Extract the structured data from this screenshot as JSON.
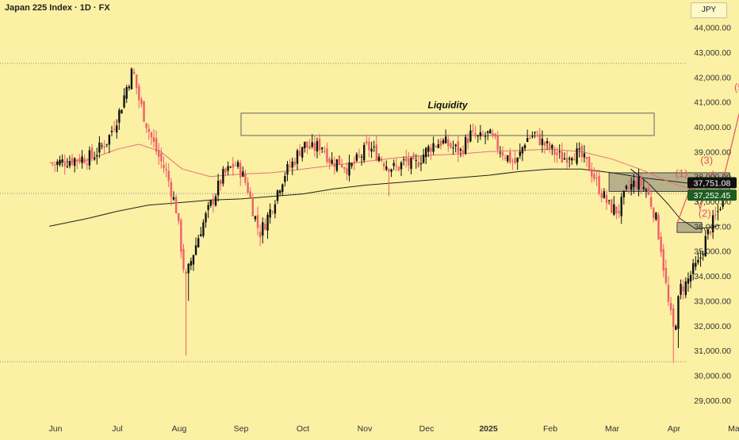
{
  "header": {
    "title": "Japan 225 Index · 1D · FX",
    "currency": "JPY"
  },
  "colors": {
    "background": "#fbf0a3",
    "up": "#111111",
    "down": "#ef5f6a",
    "ma_fast": "#e8707a",
    "ma_slow": "#222222",
    "wave": "#e05565",
    "zone": "#7d7e72"
  },
  "annotations": {
    "liquidity_label": "Liquidity",
    "waves": [
      "(1)",
      "(2)",
      "(3)",
      "(4)",
      "(5"
    ]
  },
  "price_tags": [
    {
      "label": "37,751.08",
      "value": 37751.08,
      "style": "dark"
    },
    {
      "label": "37,252.45",
      "value": 37252.45,
      "style": "green"
    }
  ],
  "chart_data": {
    "type": "candlestick",
    "symbol": "Japan 225 Index",
    "interval": "1D",
    "source": "FX",
    "currency": "JPY",
    "ylim": [
      28500,
      45500
    ],
    "y_ticks": [
      {
        "value": 29000,
        "label": "29,000.00"
      },
      {
        "value": 30000,
        "label": "30,000.00"
      },
      {
        "value": 31000,
        "label": "31,000.00"
      },
      {
        "value": 32000,
        "label": "32,000.00"
      },
      {
        "value": 33000,
        "label": "33,000.00"
      },
      {
        "value": 34000,
        "label": "34,000.00"
      },
      {
        "value": 35000,
        "label": "35,000.00"
      },
      {
        "value": 36000,
        "label": "36,000.00"
      },
      {
        "value": 37000,
        "label": "37,000.00"
      },
      {
        "value": 38000,
        "label": "38,000.00"
      },
      {
        "value": 39000,
        "label": "39,000.00"
      },
      {
        "value": 40000,
        "label": "40,000.00"
      },
      {
        "value": 41000,
        "label": "41,000.00"
      },
      {
        "value": 42000,
        "label": "42,000.00"
      },
      {
        "value": 43000,
        "label": "43,000.00"
      },
      {
        "value": 44000,
        "label": "44,000.00"
      }
    ],
    "x_ticks": [
      {
        "index": 0,
        "label": "Jun",
        "bold": false
      },
      {
        "index": 1,
        "label": "Jul",
        "bold": false
      },
      {
        "index": 2,
        "label": "Aug",
        "bold": false
      },
      {
        "index": 3,
        "label": "Sep",
        "bold": false
      },
      {
        "index": 4,
        "label": "Oct",
        "bold": false
      },
      {
        "index": 5,
        "label": "Nov",
        "bold": false
      },
      {
        "index": 6,
        "label": "Dec",
        "bold": false
      },
      {
        "index": 7,
        "label": "2025",
        "bold": true
      },
      {
        "index": 8,
        "label": "Feb",
        "bold": false
      },
      {
        "index": 9,
        "label": "Mar",
        "bold": false
      },
      {
        "index": 10,
        "label": "Apr",
        "bold": false
      },
      {
        "index": 11,
        "label": "May",
        "bold": false
      }
    ],
    "horizontal_levels": [
      42550,
      30550,
      37320
    ],
    "liquidity_zone": {
      "y_top": 40550,
      "y_bottom": 39650,
      "x_start": 3.0,
      "x_end": 9.68
    },
    "supply_zone": {
      "y_top": 38150,
      "y_bottom": 37400,
      "x_start": 8.95,
      "x_end": 10.9
    },
    "demand_zone": {
      "y_top": 36150,
      "y_bottom": 35750,
      "x_start": 10.05,
      "x_end": 10.45
    },
    "wave_path": [
      {
        "x": 10.05,
        "y": 36100,
        "label": ""
      },
      {
        "x": 10.3,
        "y": 37800,
        "label": "(1)"
      },
      {
        "x": 10.42,
        "y": 36700,
        "label": "(2)"
      },
      {
        "x": 10.63,
        "y": 38200,
        "label": "(3)"
      },
      {
        "x": 10.75,
        "y": 37400,
        "label": "(4)"
      },
      {
        "x": 11.1,
        "y": 41000,
        "label": "(5"
      }
    ],
    "ma_fast": [
      {
        "x": -0.1,
        "y": 38550
      },
      {
        "x": 0.5,
        "y": 38650
      },
      {
        "x": 1.0,
        "y": 39100
      },
      {
        "x": 1.35,
        "y": 39300
      },
      {
        "x": 1.7,
        "y": 39000
      },
      {
        "x": 2.05,
        "y": 38300
      },
      {
        "x": 2.5,
        "y": 38000
      },
      {
        "x": 3.0,
        "y": 38100
      },
      {
        "x": 3.5,
        "y": 38150
      },
      {
        "x": 4.0,
        "y": 38300
      },
      {
        "x": 4.5,
        "y": 38450
      },
      {
        "x": 5.0,
        "y": 38600
      },
      {
        "x": 5.5,
        "y": 38750
      },
      {
        "x": 6.0,
        "y": 38850
      },
      {
        "x": 6.5,
        "y": 38900
      },
      {
        "x": 7.0,
        "y": 39000
      },
      {
        "x": 7.5,
        "y": 39050
      },
      {
        "x": 8.0,
        "y": 39100
      },
      {
        "x": 8.5,
        "y": 39000
      },
      {
        "x": 9.0,
        "y": 38700
      },
      {
        "x": 9.5,
        "y": 38250
      },
      {
        "x": 10.0,
        "y": 37700
      },
      {
        "x": 10.5,
        "y": 37350
      },
      {
        "x": 10.9,
        "y": 37200
      }
    ],
    "ma_slow": [
      {
        "x": -0.1,
        "y": 36000
      },
      {
        "x": 0.5,
        "y": 36300
      },
      {
        "x": 1.0,
        "y": 36600
      },
      {
        "x": 1.5,
        "y": 36850
      },
      {
        "x": 2.0,
        "y": 36950
      },
      {
        "x": 2.5,
        "y": 37050
      },
      {
        "x": 3.0,
        "y": 37100
      },
      {
        "x": 3.5,
        "y": 37200
      },
      {
        "x": 4.0,
        "y": 37300
      },
      {
        "x": 4.5,
        "y": 37500
      },
      {
        "x": 5.0,
        "y": 37650
      },
      {
        "x": 5.5,
        "y": 37750
      },
      {
        "x": 6.0,
        "y": 37850
      },
      {
        "x": 6.5,
        "y": 37950
      },
      {
        "x": 7.0,
        "y": 38050
      },
      {
        "x": 7.5,
        "y": 38200
      },
      {
        "x": 8.0,
        "y": 38300
      },
      {
        "x": 8.5,
        "y": 38300
      },
      {
        "x": 9.0,
        "y": 38150
      },
      {
        "x": 9.5,
        "y": 37950
      },
      {
        "x": 10.0,
        "y": 37800
      },
      {
        "x": 10.5,
        "y": 37650
      },
      {
        "x": 10.9,
        "y": 37600
      }
    ],
    "ma_mid": [
      {
        "x": 9.3,
        "y": 38300
      },
      {
        "x": 9.6,
        "y": 37700
      },
      {
        "x": 9.9,
        "y": 36900
      },
      {
        "x": 10.1,
        "y": 36300
      },
      {
        "x": 10.35,
        "y": 35900
      },
      {
        "x": 10.6,
        "y": 35950
      },
      {
        "x": 10.75,
        "y": 36050
      }
    ],
    "closes": [
      {
        "x": -0.05,
        "y": 38500
      },
      {
        "x": 0.3,
        "y": 38700
      },
      {
        "x": 0.6,
        "y": 38800
      },
      {
        "x": 0.85,
        "y": 39500
      },
      {
        "x": 1.05,
        "y": 40700
      },
      {
        "x": 1.15,
        "y": 41600
      },
      {
        "x": 1.25,
        "y": 42300
      },
      {
        "x": 1.35,
        "y": 41100
      },
      {
        "x": 1.5,
        "y": 39900
      },
      {
        "x": 1.65,
        "y": 38900
      },
      {
        "x": 1.8,
        "y": 38100
      },
      {
        "x": 1.95,
        "y": 36700
      },
      {
        "x": 2.1,
        "y": 33800
      },
      {
        "x": 2.2,
        "y": 34700
      },
      {
        "x": 2.35,
        "y": 35900
      },
      {
        "x": 2.5,
        "y": 36800
      },
      {
        "x": 2.7,
        "y": 38000
      },
      {
        "x": 2.9,
        "y": 38500
      },
      {
        "x": 3.0,
        "y": 38200
      },
      {
        "x": 3.1,
        "y": 37600
      },
      {
        "x": 3.2,
        "y": 36600
      },
      {
        "x": 3.3,
        "y": 35700
      },
      {
        "x": 3.4,
        "y": 36200
      },
      {
        "x": 3.5,
        "y": 36800
      },
      {
        "x": 3.6,
        "y": 37500
      },
      {
        "x": 3.7,
        "y": 38100
      },
      {
        "x": 3.85,
        "y": 38600
      },
      {
        "x": 4.0,
        "y": 39300
      },
      {
        "x": 4.15,
        "y": 39100
      },
      {
        "x": 4.3,
        "y": 39300
      },
      {
        "x": 4.45,
        "y": 38600
      },
      {
        "x": 4.6,
        "y": 38600
      },
      {
        "x": 4.75,
        "y": 38300
      },
      {
        "x": 4.9,
        "y": 38700
      },
      {
        "x": 5.05,
        "y": 39200
      },
      {
        "x": 5.2,
        "y": 38900
      },
      {
        "x": 5.35,
        "y": 38500
      },
      {
        "x": 5.5,
        "y": 38300
      },
      {
        "x": 5.65,
        "y": 38600
      },
      {
        "x": 5.8,
        "y": 38400
      },
      {
        "x": 5.95,
        "y": 38900
      },
      {
        "x": 6.1,
        "y": 39300
      },
      {
        "x": 6.25,
        "y": 39400
      },
      {
        "x": 6.4,
        "y": 39200
      },
      {
        "x": 6.55,
        "y": 39000
      },
      {
        "x": 6.7,
        "y": 39700
      },
      {
        "x": 6.85,
        "y": 39500
      },
      {
        "x": 7.0,
        "y": 39700
      },
      {
        "x": 7.15,
        "y": 39200
      },
      {
        "x": 7.3,
        "y": 38800
      },
      {
        "x": 7.45,
        "y": 38500
      },
      {
        "x": 7.6,
        "y": 39500
      },
      {
        "x": 7.75,
        "y": 39700
      },
      {
        "x": 7.9,
        "y": 39300
      },
      {
        "x": 8.05,
        "y": 39000
      },
      {
        "x": 8.2,
        "y": 38700
      },
      {
        "x": 8.35,
        "y": 39000
      },
      {
        "x": 8.5,
        "y": 38800
      },
      {
        "x": 8.65,
        "y": 38300
      },
      {
        "x": 8.8,
        "y": 37500
      },
      {
        "x": 8.95,
        "y": 36800
      },
      {
        "x": 9.1,
        "y": 36600
      },
      {
        "x": 9.25,
        "y": 37500
      },
      {
        "x": 9.4,
        "y": 37800
      },
      {
        "x": 9.55,
        "y": 37500
      },
      {
        "x": 9.7,
        "y": 36400
      },
      {
        "x": 9.8,
        "y": 35000
      },
      {
        "x": 9.9,
        "y": 33000
      },
      {
        "x": 10.0,
        "y": 31700
      },
      {
        "x": 10.1,
        "y": 33500
      },
      {
        "x": 10.2,
        "y": 33700
      },
      {
        "x": 10.3,
        "y": 34200
      },
      {
        "x": 10.4,
        "y": 34500
      },
      {
        "x": 10.5,
        "y": 35400
      },
      {
        "x": 10.6,
        "y": 36000
      },
      {
        "x": 10.7,
        "y": 36500
      },
      {
        "x": 10.8,
        "y": 37250
      }
    ]
  }
}
